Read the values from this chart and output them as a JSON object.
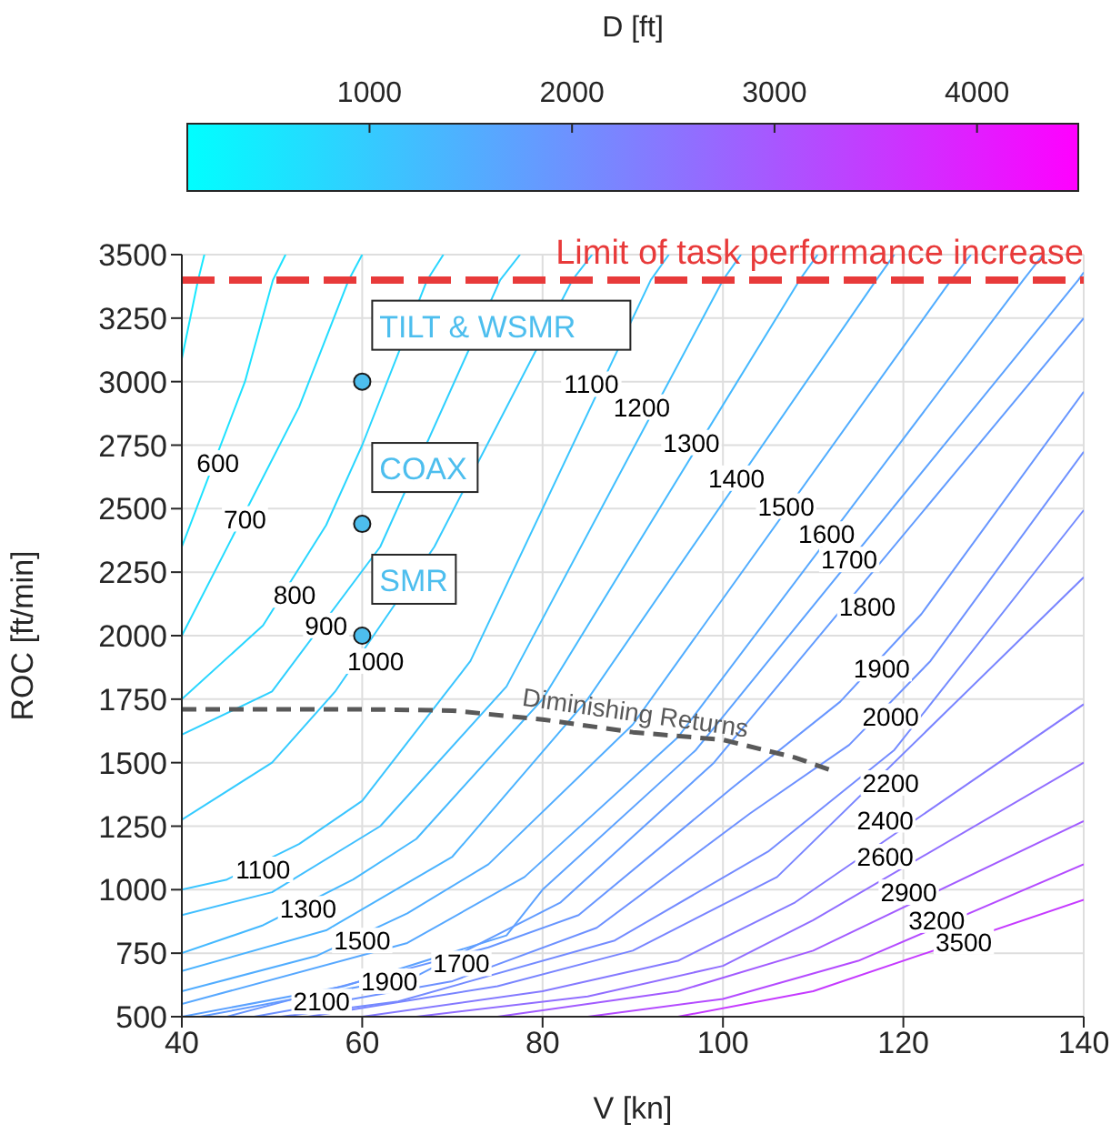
{
  "chart_data": {
    "type": "line",
    "xlabel": "V  [kn]",
    "ylabel": "ROC [ft/min]",
    "clabel": "D [ft]",
    "clim": [
      100,
      4500
    ],
    "cticks": [
      1000,
      2000,
      3000,
      4000
    ],
    "xlim": [
      40,
      140
    ],
    "xticks": [
      40,
      60,
      80,
      100,
      120,
      140
    ],
    "ylim": [
      500,
      3500
    ],
    "yticks": [
      500,
      750,
      1000,
      1250,
      1500,
      1750,
      2000,
      2250,
      2500,
      2750,
      3000,
      3250,
      3500
    ],
    "grid": true,
    "marker": "none",
    "series": [
      {
        "color": "#17e8ff",
        "x": [
          40,
          41.8,
          42.5
        ],
        "values": [
          3090,
          3400,
          3500
        ]
      },
      {
        "color": "#1de2ff",
        "x": [
          40,
          47,
          50.1,
          51.5
        ],
        "values": [
          2350,
          3000,
          3400,
          3500
        ]
      },
      {
        "color": "#23dcff",
        "x": [
          40,
          53,
          58.5,
          60
        ],
        "values": [
          2000,
          2900,
          3400,
          3500
        ]
      },
      {
        "color": "#28d6ff",
        "x": [
          40,
          49,
          56,
          60,
          67.2,
          69
        ],
        "values": [
          1750,
          2040,
          2435,
          2750,
          3400,
          3500
        ]
      },
      {
        "color": "#2ed0ff",
        "x": [
          40,
          50,
          62,
          75.3,
          77.5
        ],
        "values": [
          1610,
          1780,
          2350,
          3400,
          3500
        ]
      },
      {
        "color": "#34cbff",
        "x": [
          40,
          50,
          57,
          68,
          83.3,
          85.5
        ],
        "values": [
          1275,
          1500,
          1780,
          2350,
          3400,
          3500
        ]
      },
      {
        "color": "#3ac5ff",
        "x": [
          40,
          45,
          53,
          60,
          72,
          92,
          94
        ],
        "values": [
          1000,
          1040,
          1180,
          1350,
          1900,
          3400,
          3500
        ]
      },
      {
        "color": "#40bfff",
        "x": [
          40,
          50,
          62,
          76,
          100,
          102
        ],
        "values": [
          900,
          990,
          1250,
          1800,
          3400,
          3500
        ]
      },
      {
        "color": "#45b9ff",
        "x": [
          40,
          49,
          59,
          66,
          80,
          108.5,
          110.5
        ],
        "values": [
          750,
          860,
          1040,
          1200,
          1750,
          3400,
          3500
        ]
      },
      {
        "color": "#4bb3ff",
        "x": [
          40,
          56,
          70,
          85,
          117,
          119
        ],
        "values": [
          680,
          840,
          1130,
          1750,
          3400,
          3500
        ]
      },
      {
        "color": "#51adff",
        "x": [
          40,
          55,
          65,
          74,
          90,
          125.3,
          127.5
        ],
        "values": [
          600,
          740,
          907,
          1100,
          1650,
          3400,
          3500
        ]
      },
      {
        "color": "#57a8ff",
        "x": [
          40,
          65,
          78,
          95,
          133.3,
          135.5
        ],
        "values": [
          550,
          790,
          1050,
          1600,
          3400,
          3500
        ]
      },
      {
        "color": "#5ca2ff",
        "x": [
          40,
          58,
          76,
          80,
          97,
          139.4,
          140
        ],
        "values": [
          500,
          620,
          820,
          1000,
          1550,
          3400,
          3430
        ]
      },
      {
        "color": "#629cff",
        "x": [
          42,
          66,
          82,
          99,
          140
        ],
        "values": [
          500,
          660,
          950,
          1500,
          3250
        ]
      },
      {
        "color": "#6896ff",
        "x": [
          45,
          74,
          84,
          101,
          113,
          122,
          140
        ],
        "values": [
          500,
          773,
          900,
          1400,
          1740,
          2085,
          2960
        ]
      },
      {
        "color": "#6e91ff",
        "x": [
          48,
          70,
          86,
          103,
          114,
          123,
          140
        ],
        "values": [
          500,
          640,
          850,
          1300,
          1570,
          1900,
          2724
        ]
      },
      {
        "color": "#748bff",
        "x": [
          51,
          64,
          88,
          105,
          119,
          140
        ],
        "values": [
          500,
          560,
          800,
          1150,
          1550,
          2494
        ]
      },
      {
        "color": "#7985ff",
        "x": [
          54,
          75,
          90,
          106,
          140
        ],
        "values": [
          500,
          620,
          760,
          1050,
          2230
        ]
      },
      {
        "color": "#857aff",
        "x": [
          60,
          80,
          95,
          108,
          140
        ],
        "values": [
          500,
          600,
          720,
          950,
          1730
        ]
      },
      {
        "color": "#916eff",
        "x": [
          66,
          85,
          100,
          110,
          140
        ],
        "values": [
          500,
          580,
          700,
          880,
          1500
        ]
      },
      {
        "color": "#a25cff",
        "x": [
          75,
          95,
          110,
          140
        ],
        "values": [
          500,
          600,
          760,
          1270
        ]
      },
      {
        "color": "#b44bff",
        "x": [
          85,
          100,
          115,
          140
        ],
        "values": [
          500,
          570,
          720,
          1100
        ]
      },
      {
        "color": "#c53aff",
        "x": [
          95,
          110,
          140
        ],
        "values": [
          500,
          600,
          960
        ]
      },
      {
        "color": "#595959",
        "line_style": "dashed",
        "x": [
          40,
          60,
          70,
          80,
          90,
          100,
          108,
          112
        ],
        "values": [
          1710,
          1710,
          1705,
          1670,
          1620,
          1590,
          1520,
          1470
        ]
      },
      {
        "type": "scatter",
        "marker": "circle",
        "color": "#4dbeee",
        "x": [
          60,
          60,
          60
        ],
        "values": [
          3000,
          2440,
          2000
        ],
        "value_labels": [
          "TILT & WSMR",
          "COAX",
          "SMR"
        ]
      }
    ],
    "ref_lines": [
      {
        "axis": "y",
        "value": 3400,
        "label": "Limit of task performance increase",
        "color": "#e83a3a",
        "line_style": "dashed"
      }
    ],
    "annotations": [
      {
        "text": "600",
        "x": 44,
        "y": 2680
      },
      {
        "text": "700",
        "x": 47,
        "y": 2460
      },
      {
        "text": "800",
        "x": 52.5,
        "y": 2160
      },
      {
        "text": "900",
        "x": 56,
        "y": 2040
      },
      {
        "text": "1000",
        "x": 61.5,
        "y": 1900
      },
      {
        "text": "1100",
        "x": 85.4,
        "y": 2990
      },
      {
        "text": "1200",
        "x": 91,
        "y": 2900
      },
      {
        "text": "1300",
        "x": 96.5,
        "y": 2760
      },
      {
        "text": "1400",
        "x": 101.5,
        "y": 2620
      },
      {
        "text": "1500",
        "x": 107,
        "y": 2510
      },
      {
        "text": "1600",
        "x": 111.5,
        "y": 2400
      },
      {
        "text": "1700",
        "x": 114,
        "y": 2300
      },
      {
        "text": "1800",
        "x": 116,
        "y": 2115
      },
      {
        "text": "1900",
        "x": 117.6,
        "y": 1870
      },
      {
        "text": "2000",
        "x": 118.6,
        "y": 1683
      },
      {
        "text": "2200",
        "x": 118.6,
        "y": 1420
      },
      {
        "text": "2400",
        "x": 118,
        "y": 1275
      },
      {
        "text": "2600",
        "x": 118,
        "y": 1130
      },
      {
        "text": "2900",
        "x": 120.6,
        "y": 990
      },
      {
        "text": "3200",
        "x": 123.7,
        "y": 880
      },
      {
        "text": "3500",
        "x": 126.7,
        "y": 795
      },
      {
        "text": "1100",
        "x": 49,
        "y": 1080
      },
      {
        "text": "1300",
        "x": 54,
        "y": 925
      },
      {
        "text": "1500",
        "x": 60,
        "y": 800
      },
      {
        "text": "1700",
        "x": 71,
        "y": 710
      },
      {
        "text": "1900",
        "x": 63,
        "y": 640
      },
      {
        "text": "2100",
        "x": 55.5,
        "y": 560
      },
      {
        "text": "Diminishing Returns",
        "x": 90,
        "y": 1620
      }
    ]
  }
}
